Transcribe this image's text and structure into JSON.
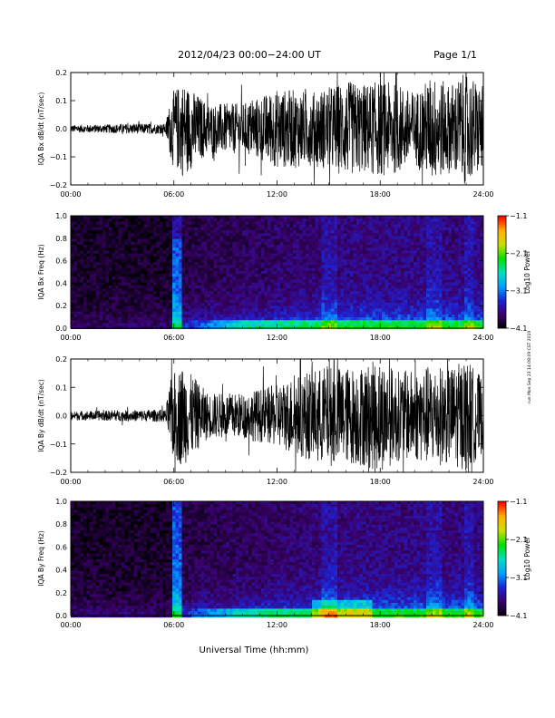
{
  "header": {
    "title": "2012/04/23  00:00−24:00 UT",
    "page": "Page 1/1"
  },
  "footer": {
    "xlabel": "Universal Time (hh:mm)"
  },
  "side_note": "run Mon Sep 23 14:08:09 CST 2019",
  "colors": {
    "trace": "#000000",
    "colorbar": [
      "#000000",
      "#3a0068",
      "#2020d0",
      "#00a0ff",
      "#00e0c0",
      "#00e000",
      "#c8e000",
      "#ffb000",
      "#ff0000"
    ]
  },
  "chart_data": [
    {
      "type": "line",
      "ylabel": "IQA Bx dB/dt (nT/sec)",
      "xlim": [
        0,
        24
      ],
      "ylim": [
        -0.2,
        0.2
      ],
      "x_ticks": [
        "00:00",
        "06:00",
        "12:00",
        "18:00",
        "24:00"
      ],
      "y_ticks": [
        "0.2",
        "0.1",
        "0.0",
        "−0.1",
        "−0.2"
      ],
      "y_tick_values": [
        0.2,
        0.1,
        0.0,
        -0.1,
        -0.2
      ],
      "envelope_hours": [
        0,
        2,
        4,
        5.5,
        5.9,
        6.5,
        8,
        10,
        12,
        13,
        14,
        15,
        16,
        17,
        18,
        19,
        20,
        21,
        22,
        23,
        24
      ],
      "envelope_amplitude": [
        0.013,
        0.015,
        0.018,
        0.018,
        0.13,
        0.17,
        0.09,
        0.09,
        0.14,
        0.14,
        0.13,
        0.15,
        0.17,
        0.16,
        0.17,
        0.16,
        0.13,
        0.19,
        0.16,
        0.2,
        0.15
      ]
    },
    {
      "type": "heatmap",
      "ylabel": "IQA Bx Freq (Hz)",
      "xlim": [
        0,
        24
      ],
      "ylim": [
        0.0,
        1.0
      ],
      "x_ticks": [
        "00:00",
        "06:00",
        "12:00",
        "18:00",
        "24:00"
      ],
      "y_ticks": [
        "1.0",
        "0.8",
        "0.6",
        "0.4",
        "0.2",
        "0.0"
      ],
      "y_tick_values": [
        1.0,
        0.8,
        0.6,
        0.4,
        0.2,
        0.0
      ],
      "colorbar_label": "Log10 Power",
      "colorbar_ticks": [
        "−1.1",
        "−2.1",
        "−3.1",
        "−4.1"
      ],
      "colorbar_values": [
        -1.1,
        -2.1,
        -3.1,
        -4.1
      ],
      "colorbar_range": [
        -4.1,
        -1.1
      ]
    },
    {
      "type": "line",
      "ylabel": "IQA By dB/dt (nT/sec)",
      "xlim": [
        0,
        24
      ],
      "ylim": [
        -0.2,
        0.2
      ],
      "x_ticks": [
        "00:00",
        "06:00",
        "12:00",
        "18:00",
        "24:00"
      ],
      "y_ticks": [
        "0.2",
        "0.1",
        "0.0",
        "−0.1",
        "−0.2"
      ],
      "y_tick_values": [
        0.2,
        0.1,
        0.0,
        -0.1,
        -0.2
      ],
      "envelope_hours": [
        0,
        2,
        4,
        5.5,
        5.9,
        6.5,
        8,
        10,
        12,
        13,
        14,
        15,
        16,
        17,
        18,
        19,
        20,
        21,
        22,
        23,
        24
      ],
      "envelope_amplitude": [
        0.015,
        0.018,
        0.02,
        0.022,
        0.15,
        0.18,
        0.08,
        0.08,
        0.11,
        0.14,
        0.16,
        0.18,
        0.17,
        0.18,
        0.2,
        0.16,
        0.16,
        0.18,
        0.17,
        0.2,
        0.13
      ]
    },
    {
      "type": "heatmap",
      "ylabel": "IQA By Freq (Hz)",
      "xlim": [
        0,
        24
      ],
      "ylim": [
        0.0,
        1.0
      ],
      "x_ticks": [
        "00:00",
        "06:00",
        "12:00",
        "18:00",
        "24:00"
      ],
      "y_ticks": [
        "1.0",
        "0.8",
        "0.6",
        "0.4",
        "0.2",
        "0.0"
      ],
      "y_tick_values": [
        1.0,
        0.8,
        0.6,
        0.4,
        0.2,
        0.0
      ],
      "colorbar_label": "Log10 Power",
      "colorbar_ticks": [
        "−1.1",
        "−2.1",
        "−3.1",
        "−4.1"
      ],
      "colorbar_values": [
        -1.1,
        -2.1,
        -3.1,
        -4.1
      ],
      "colorbar_range": [
        -4.1,
        -1.1
      ]
    }
  ]
}
